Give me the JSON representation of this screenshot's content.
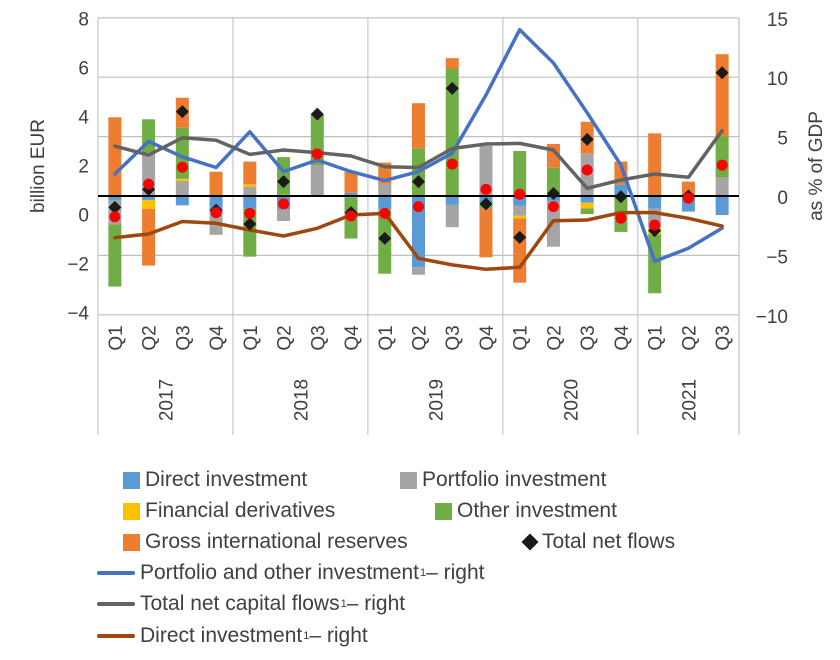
{
  "chart_data": {
    "type": "bar",
    "subtype": "stacked-bar-with-lines-and-markers",
    "title": "",
    "years": [
      "2017",
      "2018",
      "2019",
      "2020",
      "2021"
    ],
    "categories": [
      "Q1",
      "Q2",
      "Q3",
      "Q4",
      "Q1",
      "Q2",
      "Q3",
      "Q4",
      "Q1",
      "Q2",
      "Q3",
      "Q4",
      "Q1",
      "Q2",
      "Q3",
      "Q4",
      "Q1",
      "Q2",
      "Q3"
    ],
    "category_years": [
      "2017",
      "2017",
      "2017",
      "2017",
      "2018",
      "2018",
      "2018",
      "2018",
      "2019",
      "2019",
      "2019",
      "2019",
      "2020",
      "2020",
      "2020",
      "2020",
      "2021",
      "2021",
      "2021"
    ],
    "left_axis": {
      "label": "billion EUR",
      "ticks": [
        8,
        6,
        4,
        2,
        0,
        -2,
        -4
      ],
      "tick_labels": [
        "8",
        "6",
        "4",
        "2",
        "0",
        "−2",
        "−4"
      ],
      "ylim": [
        -4,
        8
      ]
    },
    "right_axis": {
      "label": "as % of GDP",
      "ticks": [
        15,
        10,
        5,
        0,
        -5,
        -10
      ],
      "tick_labels": [
        "15",
        "10",
        "5",
        "0",
        "−5",
        "−10"
      ],
      "ylim": [
        -10,
        15
      ]
    },
    "grid": true,
    "legend_position": "bottom",
    "bar_series": [
      {
        "name": "Direct investment",
        "color": "#5B9BD5",
        "values": [
          -0.16,
          -0.16,
          -0.38,
          -0.63,
          -0.51,
          -0.55,
          0,
          0.13,
          -0.55,
          -2.88,
          -0.36,
          -0.32,
          -0.4,
          -0.2,
          -0.27,
          0.47,
          -0.51,
          -0.63,
          -0.77
        ]
      },
      {
        "name": "Portfolio investment",
        "color": "#A5A5A5",
        "values": [
          -0.98,
          1.75,
          0.61,
          -0.94,
          0.38,
          -0.46,
          1.25,
          0,
          0.5,
          -0.3,
          -0.9,
          2.02,
          -0.4,
          -1.85,
          1.71,
          0,
          -0.84,
          0,
          0.75
        ]
      },
      {
        "name": "Financial derivatives",
        "color": "#FFC000",
        "values": [
          0,
          -0.36,
          0.09,
          0,
          0.09,
          0.05,
          0,
          -0.05,
          -0.04,
          0,
          0,
          0,
          -0.11,
          0,
          -0.23,
          -0.05,
          -0.2,
          0,
          0
        ]
      },
      {
        "name": "Other investment",
        "color": "#70AD47",
        "values": [
          -2.52,
          1.35,
          2.06,
          0,
          -1.94,
          1.52,
          2.06,
          -1.67,
          -2.55,
          1.93,
          5.15,
          -0.18,
          1.82,
          1.14,
          -0.23,
          -1.4,
          -2.38,
          0,
          1.67
        ]
      },
      {
        "name": "Gross international reserves",
        "color": "#ED7D31",
        "values": [
          3.18,
          -2.29,
          1.21,
          0.98,
          0.92,
          0,
          0,
          0.85,
          0.85,
          1.82,
          0.42,
          -1.98,
          -2.59,
          0.96,
          1.29,
          0.92,
          2.53,
          0.58,
          3.31
        ]
      }
    ],
    "marker_series": [
      {
        "name": "Total net flows",
        "marker": "diamond",
        "color": "#1A1A1A",
        "axis": "left",
        "values": [
          -0.46,
          0.27,
          3.41,
          -0.57,
          -1.13,
          0.58,
          3.31,
          -0.67,
          -1.71,
          0.58,
          4.35,
          -0.32,
          -1.67,
          0.1,
          2.29,
          -0.03,
          -1.4,
          0,
          4.98
        ]
      },
      {
        "name": "",
        "marker": "circle",
        "color": "#FF0000",
        "axis": "left",
        "values": [
          -0.84,
          0.48,
          1.16,
          -0.67,
          -0.7,
          -0.32,
          1.7,
          -0.81,
          -0.7,
          -0.43,
          1.29,
          0.27,
          0.07,
          -0.43,
          1.05,
          -0.9,
          -1.17,
          -0.09,
          1.25
        ]
      }
    ],
    "line_series": [
      {
        "name": "Portfolio and other investment",
        "footnote": "1",
        "suffix": " – right",
        "color": "#4472C4",
        "axis": "right",
        "values": [
          1.85,
          4.6,
          3.3,
          2.4,
          5.4,
          2.05,
          3.03,
          2.05,
          1.3,
          2.05,
          3.6,
          8.5,
          14.0,
          11.2,
          7.0,
          2.6,
          -5.5,
          -4.4,
          -2.7
        ]
      },
      {
        "name": "Total net capital flows",
        "footnote": "1",
        "suffix": " – right",
        "color": "#636363",
        "axis": "right",
        "values": [
          4.2,
          3.45,
          4.9,
          4.7,
          3.5,
          3.87,
          3.65,
          3.37,
          2.47,
          2.4,
          4.0,
          4.38,
          4.43,
          3.87,
          0.65,
          1.35,
          1.85,
          1.57,
          5.5
        ]
      },
      {
        "name": "Direct investment",
        "footnote": "1",
        "suffix": " – right",
        "color": "#9E480E",
        "axis": "right",
        "values": [
          -3.5,
          -3.2,
          -2.15,
          -2.3,
          -2.86,
          -3.37,
          -2.72,
          -1.6,
          -1.46,
          -5.25,
          -5.8,
          -6.17,
          -6.0,
          -2.08,
          -2.02,
          -1.4,
          -1.4,
          -1.88,
          -2.53
        ]
      }
    ]
  }
}
